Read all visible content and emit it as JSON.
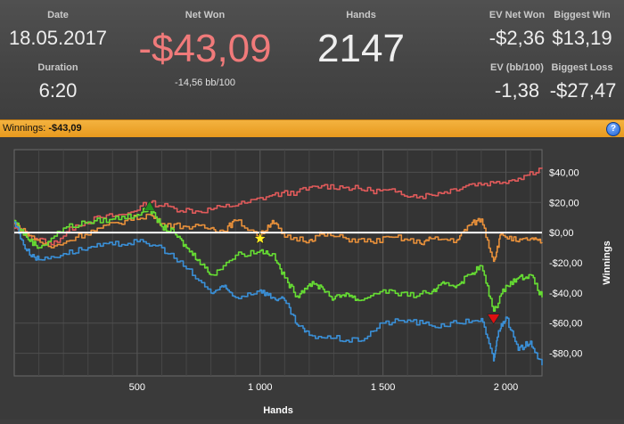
{
  "stats": {
    "date_label": "Date",
    "date_value": "18.05.2017",
    "duration_label": "Duration",
    "duration_value": "6:20",
    "net_won_label": "Net Won",
    "net_won_value": "-$43,09",
    "net_won_sub": "-14,56 bb/100",
    "hands_label": "Hands",
    "hands_value": "2147",
    "ev_net_won_label": "EV Net Won",
    "ev_net_won_value": "-$2,36",
    "biggest_win_label": "Biggest Win",
    "biggest_win_value": "$13,19",
    "ev_bb_label": "EV (bb/100)",
    "ev_bb_value": "-1,38",
    "biggest_loss_label": "Biggest Loss",
    "biggest_loss_value": "-$27,47"
  },
  "colors": {
    "net_won": "#f07a7a",
    "bar": "#f0a830",
    "series_red": "#e05a5a",
    "series_orange": "#e8903a",
    "series_green": "#66dd33",
    "series_blue": "#3a8fd6",
    "zero_line": "#ffffff"
  },
  "winnings_bar": {
    "label": "Winnings:",
    "value": "-$43,09",
    "help_icon": "?"
  },
  "chart_data": {
    "type": "line",
    "xlabel": "Hands",
    "ylabel": "Winnings",
    "xlim": [
      0,
      2147
    ],
    "ylim": [
      -95,
      55
    ],
    "x_ticks": [
      500,
      1000,
      1500,
      2000
    ],
    "x_tick_labels": [
      "500",
      "1 000",
      "1 500",
      "2 000"
    ],
    "y_ticks": [
      40,
      20,
      0,
      -20,
      -40,
      -60,
      -80
    ],
    "y_tick_labels": [
      "$40,00",
      "$20,00",
      "$0,00",
      "-$20,00",
      "-$40,00",
      "-$60,00",
      "-$80,00"
    ],
    "grid": true,
    "series": [
      {
        "color": "#e05a5a",
        "x": [
          0,
          60,
          150,
          250,
          350,
          450,
          550,
          650,
          750,
          850,
          950,
          1050,
          1150,
          1250,
          1350,
          1450,
          1550,
          1650,
          1750,
          1850,
          1950,
          2050,
          2147
        ],
        "y": [
          3,
          -2,
          -8,
          5,
          10,
          12,
          20,
          16,
          14,
          17,
          20,
          25,
          27,
          31,
          30,
          28,
          27,
          24,
          27,
          32,
          33,
          36,
          43
        ]
      },
      {
        "color": "#e8903a",
        "x": [
          0,
          60,
          150,
          250,
          350,
          450,
          550,
          600,
          700,
          800,
          850,
          900,
          1000,
          1050,
          1100,
          1200,
          1250,
          1350,
          1450,
          1550,
          1650,
          1700,
          1800,
          1850,
          1900,
          1950,
          1980,
          2050,
          2100,
          2147
        ],
        "y": [
          6,
          -2,
          -10,
          -3,
          3,
          8,
          12,
          6,
          4,
          3,
          1,
          8,
          -2,
          8,
          -3,
          -5,
          -1,
          -4,
          -6,
          -3,
          -7,
          -4,
          -5,
          5,
          9,
          -19,
          -1,
          -6,
          -4,
          -7
        ]
      },
      {
        "color": "#66dd33",
        "x": [
          0,
          50,
          100,
          200,
          300,
          400,
          500,
          550,
          600,
          650,
          700,
          750,
          800,
          900,
          1000,
          1050,
          1100,
          1150,
          1200,
          1250,
          1300,
          1350,
          1400,
          1500,
          1600,
          1700,
          1750,
          1800,
          1850,
          1900,
          1950,
          2000,
          2050,
          2100,
          2147
        ],
        "y": [
          8,
          -3,
          -10,
          3,
          7,
          9,
          12,
          16,
          4,
          0,
          -10,
          -18,
          -28,
          -15,
          -12,
          -14,
          -30,
          -42,
          -34,
          -36,
          -44,
          -40,
          -45,
          -38,
          -42,
          -39,
          -34,
          -35,
          -28,
          -22,
          -52,
          -35,
          -30,
          -28,
          -43
        ]
      },
      {
        "color": "#3a8fd6",
        "x": [
          0,
          50,
          100,
          200,
          300,
          400,
          500,
          600,
          700,
          800,
          850,
          900,
          1000,
          1050,
          1100,
          1150,
          1200,
          1300,
          1400,
          1500,
          1600,
          1700,
          1800,
          1900,
          1950,
          1970,
          2000,
          2050,
          2100,
          2147
        ],
        "y": [
          7,
          -12,
          -18,
          -14,
          -10,
          -8,
          -6,
          -10,
          -24,
          -40,
          -36,
          -43,
          -38,
          -43,
          -45,
          -61,
          -68,
          -70,
          -72,
          -60,
          -58,
          -62,
          -60,
          -57,
          -85,
          -65,
          -56,
          -78,
          -72,
          -88
        ]
      },
      {
        "color": "#ffffff",
        "x": [
          0,
          2147
        ],
        "y": [
          0,
          0
        ]
      }
    ],
    "markers": [
      {
        "type": "triangle-up",
        "color": "#228b22",
        "x": 550,
        "y": 17
      },
      {
        "type": "star",
        "color": "#ffee22",
        "x": 1000,
        "y": -4
      },
      {
        "type": "triangle-down",
        "color": "#dd1111",
        "x": 1950,
        "y": -57
      }
    ]
  }
}
